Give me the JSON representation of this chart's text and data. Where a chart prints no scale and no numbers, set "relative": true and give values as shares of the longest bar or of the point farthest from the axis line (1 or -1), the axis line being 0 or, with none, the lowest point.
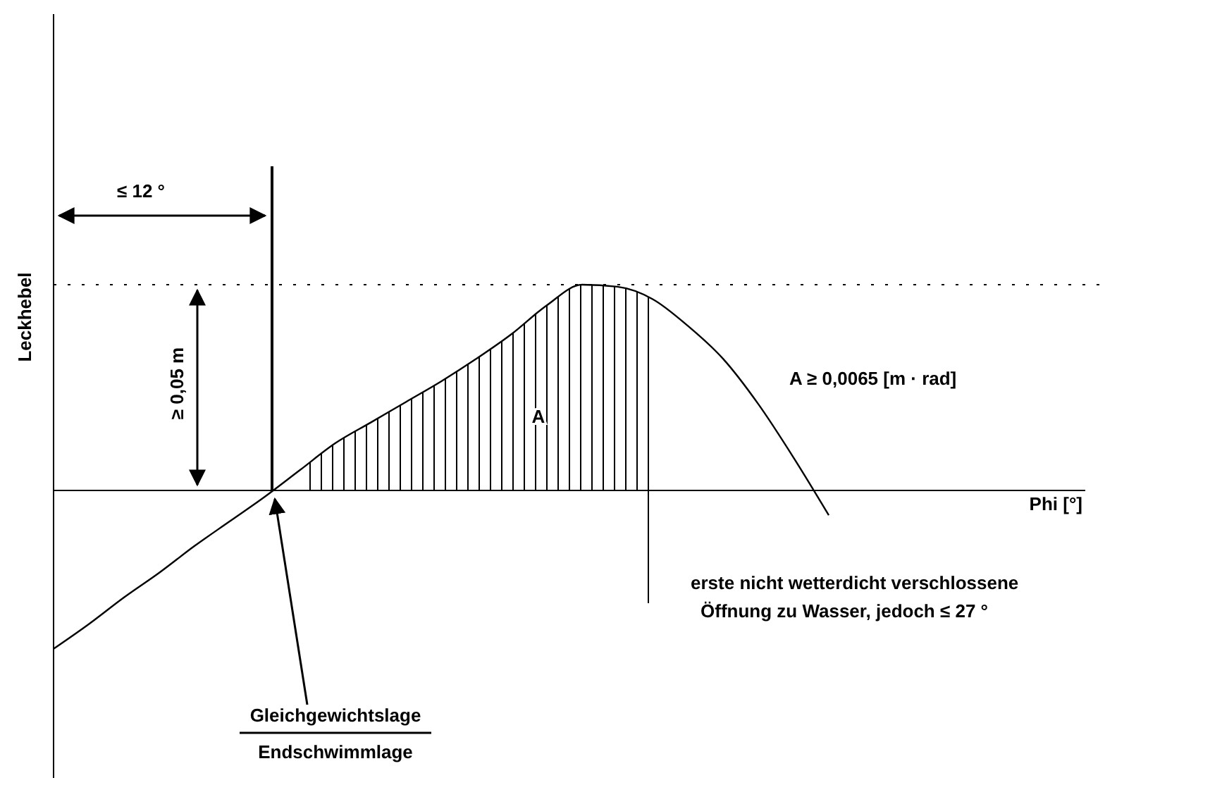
{
  "chart_data": {
    "type": "line",
    "relative": true,
    "ylabel": "Leckhebel",
    "categories": [
      null,
      null,
      null,
      null,
      null,
      null,
      null,
      null,
      null,
      null,
      null,
      null,
      null,
      null,
      null,
      null,
      null,
      null,
      null,
      null,
      null,
      null,
      null
    ],
    "series": [
      {
        "type": "line",
        "color": "#000000",
        "values": [
          -0.77,
          -0.65,
          -0.52,
          -0.4,
          -0.27,
          -0.15,
          -0.03,
          0.1,
          0.23,
          0.33,
          0.43,
          0.53,
          0.64,
          0.76,
          0.9,
          1,
          0.99,
          0.93,
          0.8,
          0.64,
          0.42,
          0.16,
          -0.12
        ]
      },
      {
        "type": "area",
        "color": "#000000",
        "values": [
          null,
          null,
          null,
          null,
          null,
          null,
          null,
          0.1,
          0.23,
          0.33,
          0.43,
          0.53,
          0.64,
          0.76,
          0.9,
          1,
          0.99,
          0.93,
          null,
          null,
          null,
          null,
          null
        ]
      }
    ],
    "ref_lines": [
      {
        "axis": "y",
        "value": 1,
        "line_style": "dotted",
        "color": "#000000"
      }
    ],
    "annotations": [
      "≤ 12 °",
      "≥ 0,05 m",
      "A ≥ 0,0065 [m · rad]",
      "A",
      "erste nicht wetterdicht verschlossene",
      "Öffnung zu Wasser, jedoch ≤ 27 °",
      "Gleichgewichtslage",
      "Endschwimmlage",
      "Phi [°]"
    ]
  }
}
